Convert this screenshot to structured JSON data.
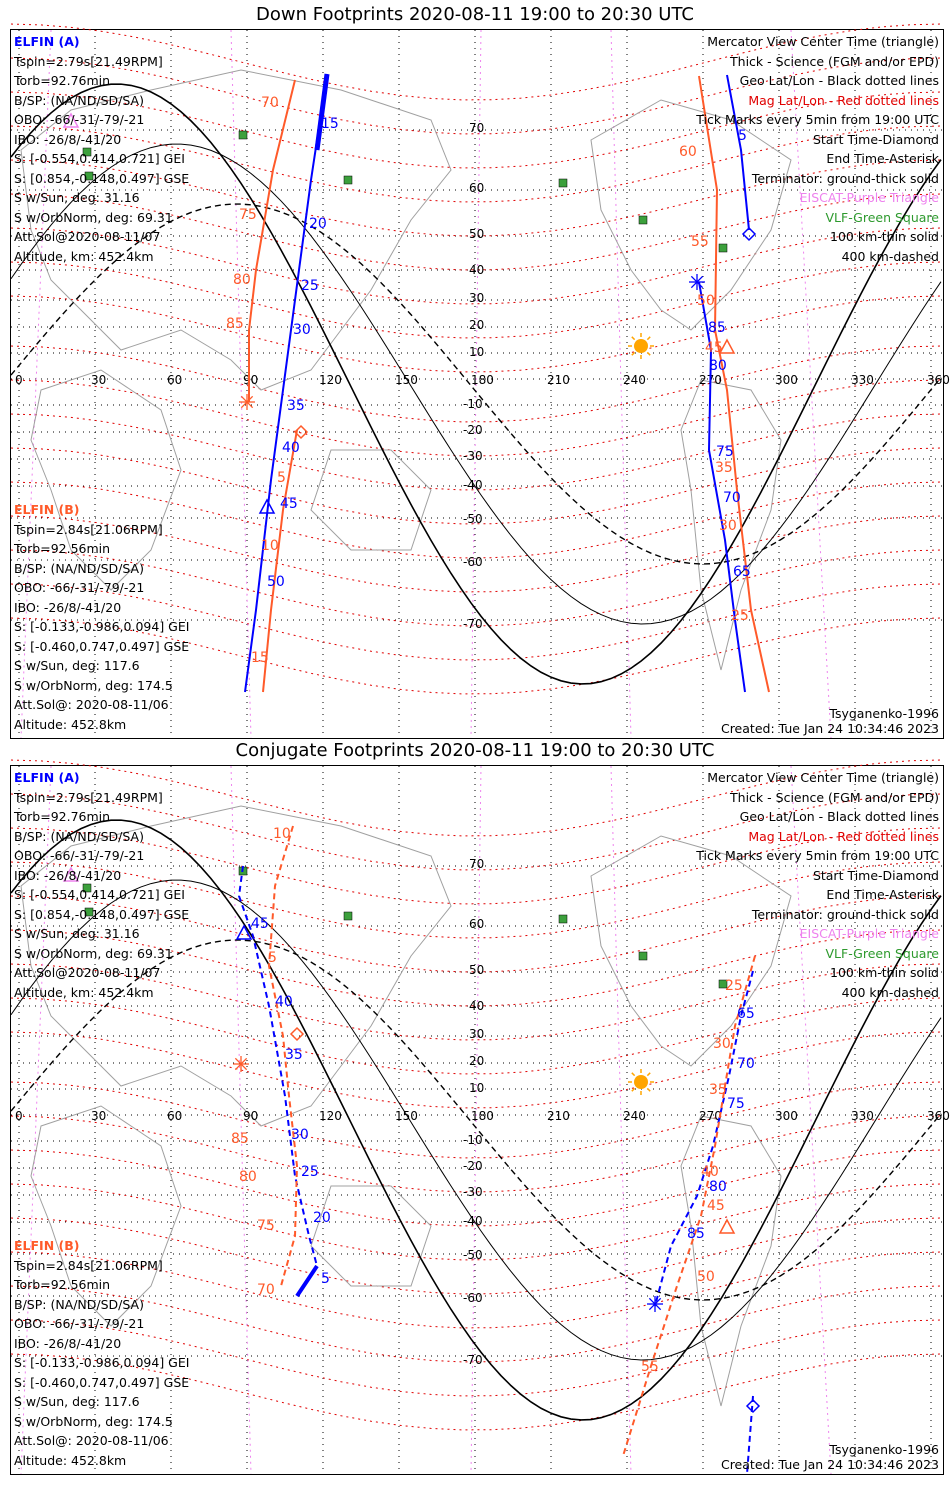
{
  "down": {
    "title": "Down Footprints 2020-08-11 19:00 to 20:30 UTC",
    "elfin_a": {
      "header": "ELFIN (A)",
      "lines": [
        "Tspin=2.79s[21.49RPM]",
        "Torb=92.76min",
        "B/SP: (NA/ND/SD/SA)",
        "OBO: -66/-31/-79/-21",
        "IBO: -26/8/-41/20",
        "S: [-0.554,0.414,0.721] GEI",
        "S: [0.854,-0.148,0.497] GSE",
        "S w/Sun, deg: 31.16",
        "S w/OrbNorm, deg: 69.31",
        "Att.Sol@2020-08-11/07",
        "Altitude, km: 452.4km"
      ]
    },
    "elfin_b": {
      "header": "ELFIN (B)",
      "lines": [
        "Tspin=2.84s[21.06RPM]",
        "Torb=92.56min",
        "B/SP: (NA/ND/SD/SA)",
        "OBO: -66/-31/-79/-21",
        "IBO: -26/8/-41/20",
        "S: [-0.133,-0.986,0.094] GEI",
        "S: [-0.460,0.747,0.497] GSE",
        "S w/Sun, deg: 117.6",
        "S w/OrbNorm, deg: 174.5",
        "Att.Sol@: 2020-08-11/06",
        "Altitude: 452.8km"
      ]
    },
    "legend": [
      {
        "text": "Mercator View Center Time (triangle)",
        "color": "#000000"
      },
      {
        "text": "Thick - Science (FGM and/or EPD)",
        "color": "#000000"
      },
      {
        "text": "Geo Lat/Lon - Black dotted lines",
        "color": "#000000"
      },
      {
        "text": "Mag Lat/Lon - Red dotted lines",
        "color": "#e00000"
      },
      {
        "text": "Tick Marks every 5min from 19:00 UTC",
        "color": "#000000"
      },
      {
        "text": "Start Time-Diamond",
        "color": "#000000"
      },
      {
        "text": "End Time-Asterisk",
        "color": "#000000"
      },
      {
        "text": "Terminator: ground-thick solid",
        "color": "#000000"
      },
      {
        "text": "EISCAT-Purple Triangle",
        "color": "#ee82ee"
      },
      {
        "text": "VLF-Green Square",
        "color": "#2e9a2e"
      },
      {
        "text": "100 km-thin solid",
        "color": "#000000"
      },
      {
        "text": "400 km-dashed",
        "color": "#000000"
      }
    ],
    "model": "Tsyganenko-1996",
    "created": "Created: Tue Jan 24 10:34:46 2023",
    "blue_ticks": [
      "15",
      "20",
      "25",
      "30",
      "35",
      "40",
      "45",
      "50",
      "5",
      "85",
      "80",
      "75",
      "70",
      "65"
    ],
    "orange_ticks": [
      "70",
      "75",
      "80",
      "85",
      "5",
      "10",
      "15",
      "60",
      "55",
      "50",
      "45",
      "35",
      "30",
      "25"
    ]
  },
  "conj": {
    "title": "Conjugate Footprints 2020-08-11 19:00 to 20:30 UTC",
    "model": "Tsyganenko-1996",
    "created": "Created: Tue Jan 24 10:34:46 2023",
    "blue_ticks": [
      "45",
      "40",
      "35",
      "30",
      "25",
      "20",
      "5",
      "65",
      "70",
      "75",
      "80",
      "85"
    ],
    "orange_ticks": [
      "10",
      "5",
      "85",
      "80",
      "75",
      "70",
      "25",
      "30",
      "35",
      "40",
      "45",
      "50",
      "55"
    ]
  },
  "axis": {
    "lon_labels": [
      "0",
      "30",
      "60",
      "90",
      "120",
      "150",
      "180",
      "210",
      "240",
      "270",
      "300",
      "330",
      "360"
    ],
    "lat_labels_n": [
      "70",
      "60",
      "50",
      "40",
      "30",
      "20",
      "10"
    ],
    "lat_labels_s": [
      "-10",
      "-20",
      "-30",
      "-40",
      "-50",
      "-60",
      "-70"
    ]
  },
  "colors": {
    "elfin_a": "#0000ff",
    "elfin_b": "#ff5a2a",
    "mag_grid": "#e00000",
    "geo_grid": "#000000",
    "eiscat": "#ee82ee",
    "vlf": "#2e9a2e",
    "sun": "#ffa500"
  }
}
